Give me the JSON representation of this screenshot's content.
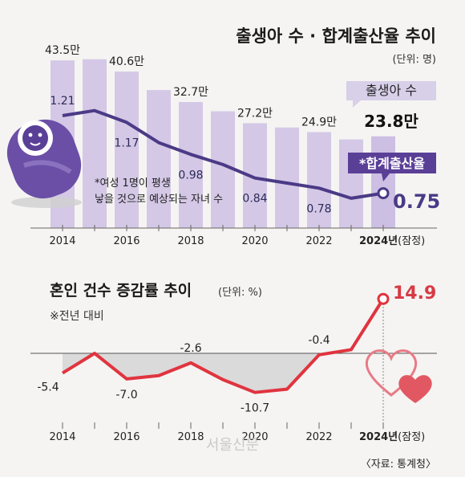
{
  "top": {
    "title": "출생아 수 · 합계출산율 추이",
    "unit": "(단위: 명)",
    "years": [
      "2014",
      "2015",
      "2016",
      "2017",
      "2018",
      "2019",
      "2020",
      "2021",
      "2022",
      "2023",
      "2024"
    ],
    "x_tick_labels": [
      "2014",
      "2016",
      "2018",
      "2020",
      "2022",
      "2024년"
    ],
    "last_suffix": "(잠정)",
    "births_label_texts": [
      "43.5만",
      "40.6만",
      "32.7만",
      "27.2만",
      "24.9만"
    ],
    "births_label_years": [
      "2014",
      "2016",
      "2018",
      "2020",
      "2022"
    ],
    "births_box_label": "출생아 수",
    "births_last_value_label": "23.8만",
    "tfr_box_label": "*합계출산율",
    "tfr_value_labels": [
      "1.21",
      "1.17",
      "0.98",
      "0.84",
      "0.78"
    ],
    "tfr_label_years": [
      "2014",
      "2016",
      "2018",
      "2020",
      "2022"
    ],
    "tfr_last_value_label": "0.75",
    "footnote": [
      "*여성 1명이 평생",
      "낳을 것으로 예상되는 자녀 수"
    ]
  },
  "bottom": {
    "title": "혼인 건수 증감률 추이",
    "unit": "(단위: %)",
    "note": "※전년 대비",
    "x_tick_labels": [
      "2014",
      "2016",
      "2018",
      "2020",
      "2022",
      "2024년"
    ],
    "last_suffix": "(잠정)",
    "value_labels": [
      "-5.4",
      "-7.0",
      "-2.6",
      "-10.7",
      "-0.4"
    ],
    "value_label_years": [
      "2014",
      "2016",
      "2018",
      "2020",
      "2022"
    ],
    "last_value_label": "14.9"
  },
  "source": "〈자료: 통계청〉",
  "watermark": "서울신문",
  "colors": {
    "bar": "#d4c8e6",
    "line_purple": "#4b3a86",
    "label_box_purple": "#d8cfe9",
    "tfr_box": "#5a3f97",
    "line_red": "#e0343f",
    "area_gray": "#dadada"
  },
  "chart_data": [
    {
      "type": "bar",
      "title": "출생아 수 · 합계출산율 추이",
      "unit": "(단위: 명)",
      "categories": [
        "2014",
        "2015",
        "2016",
        "2017",
        "2018",
        "2019",
        "2020",
        "2021",
        "2022",
        "2023",
        "2024"
      ],
      "series": [
        {
          "name": "출생아 수",
          "values": [
            43.5,
            43.8,
            40.6,
            35.8,
            32.7,
            30.3,
            27.2,
            26.1,
            24.9,
            23.0,
            23.8
          ]
        }
      ]
    },
    {
      "type": "line",
      "categories": [
        "2014",
        "2015",
        "2016",
        "2017",
        "2018",
        "2019",
        "2020",
        "2021",
        "2022",
        "2023",
        "2024"
      ],
      "series": [
        {
          "name": "합계출산율",
          "values": [
            1.21,
            1.24,
            1.17,
            1.05,
            0.98,
            0.92,
            0.84,
            0.81,
            0.78,
            0.72,
            0.75
          ]
        }
      ]
    },
    {
      "type": "line",
      "title": "혼인 건수 증감률 추이",
      "unit": "(단위: %)",
      "categories": [
        "2014",
        "2015",
        "2016",
        "2017",
        "2018",
        "2019",
        "2020",
        "2021",
        "2022",
        "2023",
        "2024"
      ],
      "series": [
        {
          "name": "",
          "values": [
            -5.4,
            0.0,
            -7.0,
            -6.1,
            -2.6,
            -7.2,
            -10.7,
            -9.8,
            -0.4,
            1.0,
            14.9
          ]
        }
      ]
    }
  ]
}
